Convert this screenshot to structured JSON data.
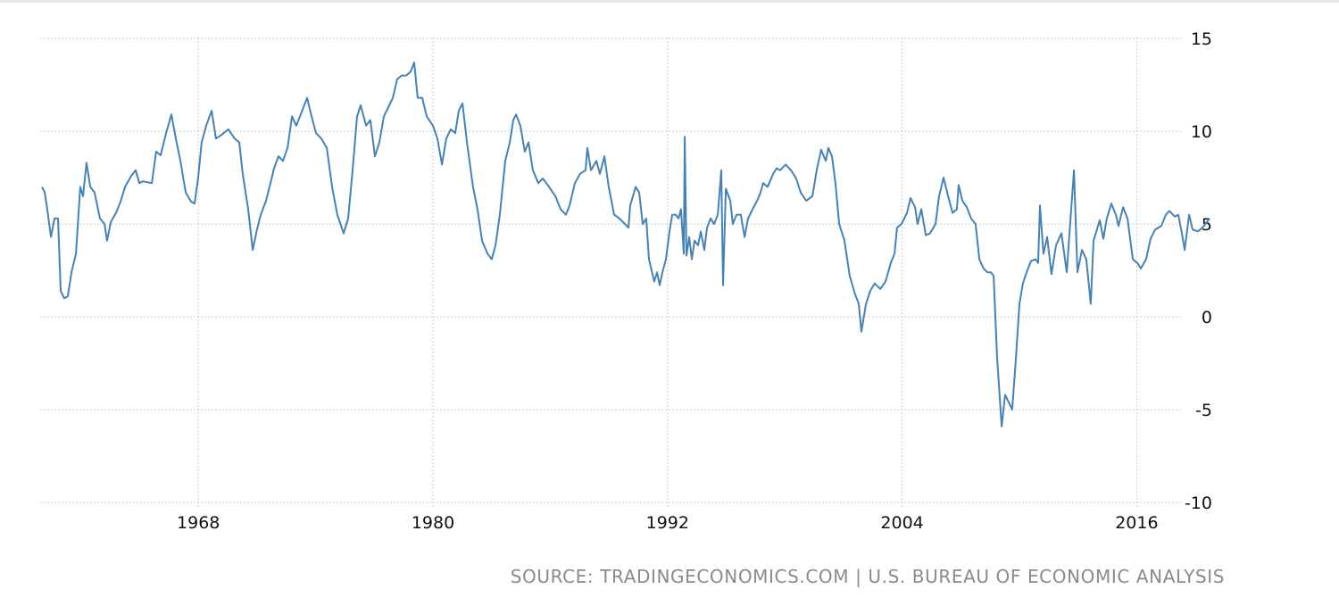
{
  "chart_data": {
    "type": "line",
    "title": "",
    "xlabel": "",
    "ylabel": "",
    "xlim": [
      1960,
      2020
    ],
    "ylim": [
      -10,
      15
    ],
    "x_ticks": [
      1968,
      1980,
      1992,
      2004,
      2016
    ],
    "x_tick_labels": [
      "1968",
      "1980",
      "1992",
      "2004",
      "2016"
    ],
    "y_ticks": [
      15,
      10,
      5,
      0,
      -5,
      -10
    ],
    "y_tick_labels": [
      "15",
      "10",
      "5",
      "0",
      "-5",
      "-10"
    ],
    "grid": true,
    "legend": "none",
    "series": [
      {
        "name": "series",
        "color": "#4682b4",
        "x": [
          1960.0,
          1960.14,
          1960.27,
          1960.46,
          1960.64,
          1960.82,
          1960.96,
          1961.14,
          1961.32,
          1961.51,
          1961.74,
          1961.96,
          1962.1,
          1962.28,
          1962.47,
          1962.69,
          1962.97,
          1963.2,
          1963.33,
          1963.52,
          1963.79,
          1964.02,
          1964.25,
          1964.57,
          1964.79,
          1964.98,
          1965.16,
          1965.62,
          1965.84,
          1966.07,
          1966.35,
          1966.62,
          1966.85,
          1967.08,
          1967.35,
          1967.63,
          1967.81,
          1967.99,
          1968.17,
          1968.4,
          1968.68,
          1968.9,
          1969.18,
          1969.54,
          1969.86,
          1970.09,
          1970.27,
          1970.55,
          1970.78,
          1971.0,
          1971.19,
          1971.46,
          1971.69,
          1971.87,
          1972.1,
          1972.33,
          1972.56,
          1972.79,
          1973.01,
          1973.29,
          1973.56,
          1973.79,
          1974.02,
          1974.29,
          1974.57,
          1974.84,
          1975.11,
          1975.43,
          1975.66,
          1975.89,
          1976.12,
          1976.3,
          1976.58,
          1976.8,
          1977.03,
          1977.26,
          1977.49,
          1977.72,
          1977.95,
          1978.17,
          1978.4,
          1978.63,
          1978.86,
          1979.04,
          1979.22,
          1979.45,
          1979.68,
          1980.0,
          1980.23,
          1980.46,
          1980.68,
          1980.91,
          1981.14,
          1981.32,
          1981.51,
          1981.74,
          1982.05,
          1982.28,
          1982.51,
          1982.79,
          1983.01,
          1983.2,
          1983.42,
          1983.7,
          1983.93,
          1984.11,
          1984.25,
          1984.47,
          1984.7,
          1984.89,
          1985.11,
          1985.39,
          1985.62,
          1985.94,
          1986.26,
          1986.53,
          1986.8,
          1986.99,
          1987.26,
          1987.53,
          1987.81,
          1987.9,
          1988.08,
          1988.36,
          1988.54,
          1988.77,
          1988.99,
          1989.27,
          1989.54,
          1989.82,
          1990.0,
          1990.09,
          1990.37,
          1990.55,
          1990.73,
          1990.91,
          1991.05,
          1991.32,
          1991.46,
          1991.6,
          1991.74,
          1991.92,
          1992.1,
          1992.24,
          1992.42,
          1992.56,
          1992.69,
          1992.83,
          1992.88,
          1992.97,
          1993.11,
          1993.24,
          1993.38,
          1993.56,
          1993.7,
          1993.88,
          1994.02,
          1994.2,
          1994.38,
          1994.57,
          1994.75,
          1994.84,
          1994.98,
          1995.21,
          1995.34,
          1995.53,
          1995.75,
          1995.94,
          1996.12,
          1996.35,
          1996.58,
          1996.76,
          1996.89,
          1997.12,
          1997.4,
          1997.58,
          1997.76,
          1998.04,
          1998.31,
          1998.58,
          1998.81,
          1999.09,
          1999.41,
          1999.63,
          1999.86,
          2000.09,
          2000.23,
          2000.41,
          2000.59,
          2000.78,
          2001.05,
          2001.32,
          2001.6,
          2001.78,
          2001.92,
          2002.15,
          2002.37,
          2002.6,
          2002.88,
          2003.15,
          2003.42,
          2003.61,
          2003.74,
          2003.97,
          2004.25,
          2004.43,
          2004.66,
          2004.79,
          2004.98,
          2005.21,
          2005.43,
          2005.71,
          2005.89,
          2006.12,
          2006.35,
          2006.58,
          2006.8,
          2006.89,
          2007.08,
          2007.31,
          2007.53,
          2007.76,
          2007.95,
          2008.17,
          2008.36,
          2008.54,
          2008.68,
          2008.86,
          2009.09,
          2009.27,
          2009.45,
          2009.63,
          2009.82,
          2010.0,
          2010.18,
          2010.37,
          2010.59,
          2010.82,
          2010.96,
          2011.05,
          2011.23,
          2011.42,
          2011.64,
          2011.87,
          2012.15,
          2012.42,
          2012.79,
          2012.97,
          2013.2,
          2013.42,
          2013.65,
          2013.79,
          2014.11,
          2014.29,
          2014.47,
          2014.7,
          2014.93,
          2015.07,
          2015.3,
          2015.53,
          2015.8,
          2016.03,
          2016.21,
          2016.48,
          2016.71,
          2016.94,
          2017.26,
          2017.49,
          2017.67,
          2017.95,
          2018.13,
          2018.31,
          2018.45,
          2018.68,
          2018.86,
          2019.13,
          2019.36,
          2019.73
        ],
        "y": [
          7.0,
          6.7,
          5.8,
          4.3,
          5.3,
          5.3,
          1.4,
          1.0,
          1.1,
          2.4,
          3.4,
          7.0,
          6.5,
          8.3,
          7.0,
          6.7,
          5.3,
          5.0,
          4.1,
          5.1,
          5.6,
          6.2,
          7.0,
          7.6,
          7.9,
          7.2,
          7.3,
          7.2,
          8.9,
          8.7,
          9.9,
          10.9,
          9.6,
          8.4,
          6.7,
          6.2,
          6.1,
          7.5,
          9.4,
          10.3,
          11.1,
          9.6,
          9.8,
          10.1,
          9.6,
          9.4,
          7.7,
          5.8,
          3.6,
          4.7,
          5.5,
          6.25,
          7.2,
          8.0,
          8.65,
          8.4,
          9.1,
          10.8,
          10.3,
          11.05,
          11.8,
          10.8,
          9.9,
          9.6,
          9.1,
          7.0,
          5.5,
          4.5,
          5.3,
          7.9,
          10.8,
          11.4,
          10.3,
          10.6,
          8.65,
          9.4,
          10.8,
          11.3,
          11.8,
          12.8,
          13.0,
          13.0,
          13.2,
          13.7,
          11.8,
          11.8,
          10.8,
          10.3,
          9.6,
          8.2,
          9.6,
          10.1,
          9.9,
          11.1,
          11.5,
          9.4,
          7.0,
          5.8,
          4.1,
          3.4,
          3.1,
          3.85,
          5.5,
          8.4,
          9.4,
          10.6,
          10.9,
          10.3,
          8.9,
          9.4,
          7.9,
          7.2,
          7.45,
          7.0,
          6.5,
          5.8,
          5.5,
          6.0,
          7.2,
          7.7,
          7.9,
          9.1,
          7.9,
          8.4,
          7.7,
          8.65,
          7.0,
          5.5,
          5.3,
          5.0,
          4.8,
          6.0,
          7.0,
          6.7,
          5.0,
          5.3,
          3.1,
          1.9,
          2.4,
          1.7,
          2.4,
          3.1,
          4.6,
          5.5,
          5.5,
          5.3,
          5.8,
          3.4,
          9.7,
          3.3,
          4.3,
          3.1,
          4.1,
          3.85,
          4.6,
          3.6,
          4.8,
          5.3,
          5.0,
          5.5,
          7.9,
          1.7,
          6.9,
          6.25,
          5.0,
          5.5,
          5.5,
          4.3,
          5.3,
          5.8,
          6.25,
          6.7,
          7.2,
          7.0,
          7.7,
          8.0,
          7.9,
          8.2,
          7.9,
          7.45,
          6.7,
          6.25,
          6.5,
          7.9,
          9.0,
          8.4,
          9.1,
          8.65,
          7.2,
          5.0,
          4.1,
          2.2,
          1.2,
          0.7,
          -0.8,
          0.7,
          1.4,
          1.8,
          1.5,
          1.9,
          2.9,
          3.4,
          4.8,
          5.0,
          5.6,
          6.4,
          5.9,
          5.0,
          5.8,
          4.4,
          4.5,
          5.0,
          6.5,
          7.5,
          6.5,
          5.6,
          5.8,
          7.1,
          6.25,
          5.9,
          5.3,
          5.0,
          3.1,
          2.6,
          2.4,
          2.4,
          2.2,
          -2.2,
          -5.9,
          -4.2,
          -4.6,
          -5.0,
          -2.2,
          0.7,
          1.8,
          2.4,
          3.0,
          3.1,
          2.9,
          6.0,
          3.4,
          4.3,
          2.3,
          3.85,
          4.5,
          2.4,
          7.9,
          2.4,
          3.6,
          3.1,
          0.7,
          4.1,
          5.2,
          4.2,
          5.3,
          6.1,
          5.5,
          4.9,
          5.9,
          5.3,
          3.1,
          2.9,
          2.6,
          3.1,
          4.2,
          4.7,
          4.9,
          5.5,
          5.7,
          5.4,
          5.5,
          4.5,
          3.6,
          5.5,
          4.7,
          4.6,
          4.8,
          5.3
        ]
      }
    ]
  },
  "source": "SOURCE: TRADINGECONOMICS.COM | U.S. BUREAU OF ECONOMIC ANALYSIS",
  "colors": {
    "line": "#4682b4",
    "grid": "#cccccc",
    "source_text": "#8a8a8a"
  }
}
